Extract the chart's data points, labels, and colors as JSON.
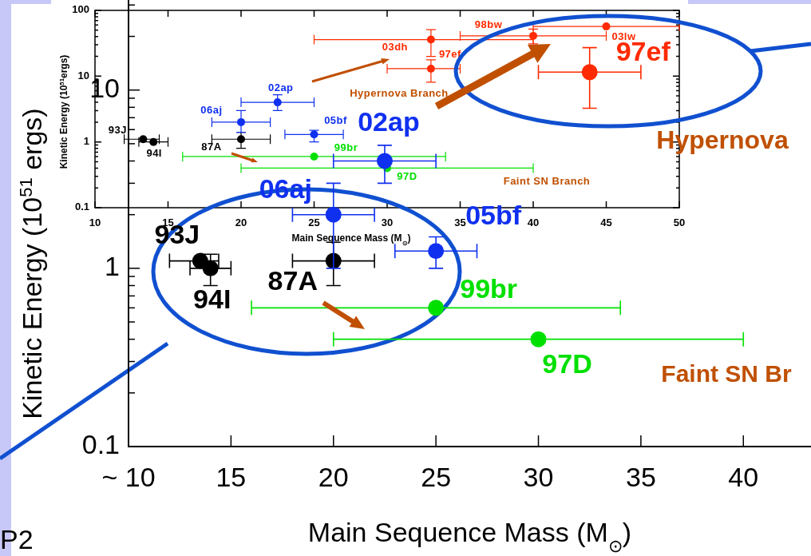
{
  "chart_data": [
    {
      "type": "scatter",
      "xlabel": "Main Sequence Mass (M$_{⊙}$)",
      "ylabel": "Kinetic Energy (10$^{51}$ ergs)",
      "log": "y",
      "marker": "circle",
      "xlim": [
        10,
        43.3
      ],
      "ylim": [
        0.1,
        32
      ],
      "xticks": [
        {
          "value": 10,
          "label": "~ 10"
        },
        15,
        20,
        25,
        30,
        35,
        40
      ],
      "yticks": [
        {
          "value": 0.1,
          "label": "0.1"
        },
        {
          "value": 0.2,
          "label": null
        },
        {
          "value": 0.3,
          "label": null
        },
        {
          "value": 0.4,
          "label": null
        },
        {
          "value": 0.5,
          "label": null
        },
        {
          "value": 0.6,
          "label": null
        },
        {
          "value": 0.7,
          "label": null
        },
        {
          "value": 0.8,
          "label": null
        },
        {
          "value": 0.9,
          "label": null
        },
        1,
        {
          "value": 2,
          "label": null
        },
        {
          "value": 3,
          "label": null
        },
        {
          "value": 4,
          "label": null
        },
        {
          "value": 5,
          "label": null
        },
        {
          "value": 6,
          "label": null
        },
        {
          "value": 7,
          "label": null
        },
        {
          "value": 8,
          "label": null
        },
        {
          "value": 9,
          "label": null
        },
        10,
        {
          "value": 20,
          "label": null
        },
        {
          "value": 30,
          "label": null
        }
      ],
      "series": [
        {
          "name": "93J",
          "color": "#000000",
          "x": [
            13.5
          ],
          "values": [
            1.1
          ],
          "xerrors": [
            [
              12,
              14.4
            ]
          ]
        },
        {
          "name": "94I",
          "color": "#000000",
          "x": [
            14.0
          ],
          "values": [
            1.0
          ],
          "errors": [
            [
              0.8,
              1.2
            ]
          ],
          "xerrors": [
            [
              13,
              15
            ]
          ]
        },
        {
          "name": "87A",
          "color": "#000000",
          "x": [
            20
          ],
          "values": [
            1.1
          ],
          "errors": [
            [
              0.8,
              1.4
            ]
          ],
          "xerrors": [
            [
              18,
              22
            ]
          ]
        },
        {
          "name": "06aj",
          "color": "#1030f0",
          "x": [
            20
          ],
          "values": [
            2.0
          ],
          "errors": [
            [
              1.0,
              3.0
            ]
          ],
          "xerrors": [
            [
              18,
              22
            ]
          ]
        },
        {
          "name": "02ap",
          "color": "#1030f0",
          "x": [
            22.5
          ],
          "values": [
            4.0
          ],
          "errors": [
            [
              3.0,
              4.9
            ]
          ],
          "xerrors": [
            [
              20,
              25
            ]
          ]
        },
        {
          "name": "05bf",
          "color": "#1030f0",
          "x": [
            25
          ],
          "values": [
            1.25
          ],
          "errors": [
            [
              1.0,
              1.5
            ]
          ],
          "xerrors": [
            [
              23,
              27
            ]
          ]
        },
        {
          "name": "99br",
          "color": "#00e000",
          "x": [
            25
          ],
          "values": [
            0.6
          ],
          "xerrors": [
            [
              16,
              34
            ]
          ]
        },
        {
          "name": "97D",
          "color": "#00e000",
          "x": [
            30
          ],
          "values": [
            0.4
          ],
          "xerrors": [
            [
              20,
              40
            ]
          ]
        },
        {
          "name": "97ef",
          "color": "#ff2a00",
          "x": [
            32.5
          ],
          "values": [
            12.6
          ],
          "errors": [
            [
              7.9,
              17.3
            ]
          ],
          "xerrors": [
            [
              30,
              35
            ]
          ]
        }
      ],
      "annotations": [
        "Hypernova",
        "Faint SN Br",
        "P2"
      ]
    },
    {
      "type": "scatter",
      "xlabel": "Main Sequence Mass (M$_{⊙}$)",
      "ylabel": "Kinetic Energy (10$^{51}$ergs)",
      "log": "y",
      "marker": "circle",
      "xlim": [
        10,
        50
      ],
      "ylim": [
        0.1,
        100
      ],
      "xticks": [
        10,
        15,
        20,
        25,
        30,
        35,
        40,
        45,
        50
      ],
      "yticks": [
        {
          "value": 0.1,
          "label": "0.1"
        },
        {
          "value": 0.2,
          "label": null
        },
        {
          "value": 0.3,
          "label": null
        },
        {
          "value": 0.4,
          "label": null
        },
        {
          "value": 0.5,
          "label": null
        },
        {
          "value": 0.6,
          "label": null
        },
        {
          "value": 0.7,
          "label": null
        },
        {
          "value": 0.8,
          "label": null
        },
        {
          "value": 0.9,
          "label": null
        },
        1,
        {
          "value": 2,
          "label": null
        },
        {
          "value": 3,
          "label": null
        },
        {
          "value": 4,
          "label": null
        },
        {
          "value": 5,
          "label": null
        },
        {
          "value": 6,
          "label": null
        },
        {
          "value": 7,
          "label": null
        },
        {
          "value": 8,
          "label": null
        },
        {
          "value": 9,
          "label": null
        },
        10,
        {
          "value": 20,
          "label": null
        },
        {
          "value": 30,
          "label": null
        },
        {
          "value": 40,
          "label": null
        },
        {
          "value": 50,
          "label": null
        },
        {
          "value": 60,
          "label": null
        },
        {
          "value": 70,
          "label": null
        },
        {
          "value": 80,
          "label": null
        },
        {
          "value": 90,
          "label": null
        },
        100
      ],
      "series": [
        {
          "name": "93J",
          "color": "#000000",
          "x": [
            13.3
          ],
          "values": [
            1.1
          ],
          "xerrors": [
            [
              12,
              14.4
            ]
          ]
        },
        {
          "name": "94I",
          "color": "#000000",
          "x": [
            14.0
          ],
          "values": [
            1.0
          ],
          "xerrors": [
            [
              13,
              15
            ]
          ]
        },
        {
          "name": "87A",
          "color": "#000000",
          "x": [
            20
          ],
          "values": [
            1.1
          ],
          "errors": [
            [
              0.8,
              1.4
            ]
          ],
          "xerrors": [
            [
              18,
              22
            ]
          ]
        },
        {
          "name": "06aj",
          "color": "#1030f0",
          "x": [
            20
          ],
          "values": [
            2.0
          ],
          "errors": [
            [
              1.4,
              3.0
            ]
          ],
          "xerrors": [
            [
              18,
              22
            ]
          ]
        },
        {
          "name": "02ap",
          "color": "#1030f0",
          "x": [
            22.5
          ],
          "values": [
            4.0
          ],
          "errors": [
            [
              3.0,
              5.2
            ]
          ],
          "xerrors": [
            [
              20,
              25
            ]
          ]
        },
        {
          "name": "05bf",
          "color": "#1030f0",
          "x": [
            25
          ],
          "values": [
            1.3
          ],
          "errors": [
            [
              1.0,
              1.5
            ]
          ],
          "xerrors": [
            [
              23,
              27
            ]
          ]
        },
        {
          "name": "99br",
          "color": "#00e000",
          "x": [
            25
          ],
          "values": [
            0.6
          ],
          "xerrors": [
            [
              16,
              34
            ]
          ]
        },
        {
          "name": "97D",
          "color": "#00e000",
          "x": [
            30
          ],
          "values": [
            0.4
          ],
          "xerrors": [
            [
              20,
              40
            ]
          ]
        },
        {
          "name": "03dh",
          "color": "#ff2a00",
          "x": [
            33
          ],
          "values": [
            36
          ],
          "errors": [
            [
              20,
              51
            ]
          ],
          "xerrors": [
            [
              25,
              40
            ]
          ]
        },
        {
          "name": "98bw",
          "color": "#ff2a00",
          "x": [
            40
          ],
          "values": [
            41
          ],
          "errors": [
            [
              31,
              52
            ]
          ],
          "xerrors": [
            [
              35,
              45
            ]
          ]
        },
        {
          "name": "03lw",
          "color": "#ff2a00",
          "x": [
            45
          ],
          "values": [
            57
          ],
          "xerrors": [
            [
              40,
              50
            ]
          ]
        },
        {
          "name": "97ef",
          "color": "#ff2a00",
          "x": [
            33
          ],
          "values": [
            13
          ],
          "errors": [
            [
              8.1,
              17.7
            ]
          ],
          "xerrors": [
            [
              30,
              35
            ]
          ]
        }
      ],
      "annotations": [
        "Hypernova Branch",
        "Faint SN Branch"
      ]
    }
  ]
}
